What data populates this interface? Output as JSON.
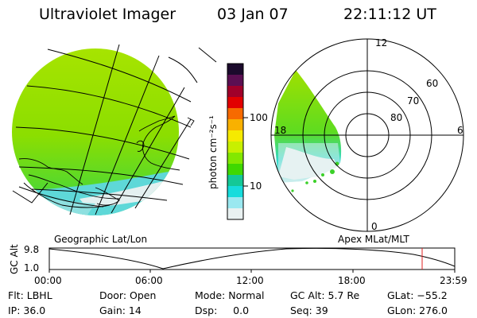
{
  "header": {
    "instrument": "Ultraviolet Imager",
    "date": "03 Jan 07",
    "time": "22:11:12 UT"
  },
  "colorbar": {
    "unit_label": "photon cm⁻²s⁻¹",
    "ticks": [
      "100",
      "10"
    ],
    "colors": [
      "#1b0a2c",
      "#5b0f52",
      "#a0002a",
      "#e20000",
      "#f76a00",
      "#f9b100",
      "#f6ea00",
      "#c8f000",
      "#83e800",
      "#3fd800",
      "#14c896",
      "#16dcdc",
      "#9ae8f0",
      "#e9f1f1"
    ]
  },
  "geo_map": {
    "label": "Geographic Lat/Lon"
  },
  "polar_plot": {
    "label": "Apex  MLat/MLT",
    "mlt_labels": {
      "top": "12",
      "left": "18",
      "right": "6",
      "bottom": "0"
    },
    "lat_labels": [
      "60",
      "70",
      "80"
    ]
  },
  "altitude_plot": {
    "ylabel": "GC Alt",
    "yticks": [
      "9.8",
      "1.0"
    ],
    "xticks": [
      "00:00",
      "06:00",
      "12:00",
      "18:00",
      "23:59"
    ],
    "marker_color": "#e02020"
  },
  "info": {
    "filter": "Flt: LBHL",
    "ip": "IP: 36.0",
    "door": "Door: Open",
    "gain": "Gain: 14",
    "mode": "Mode: Normal",
    "dsp": "Dsp:     0.0",
    "gc_alt": "GC Alt: 5.7 Re",
    "seq": "Seq: 39",
    "glat": "GLat: −55.2",
    "glon": "GLon: 276.0"
  }
}
